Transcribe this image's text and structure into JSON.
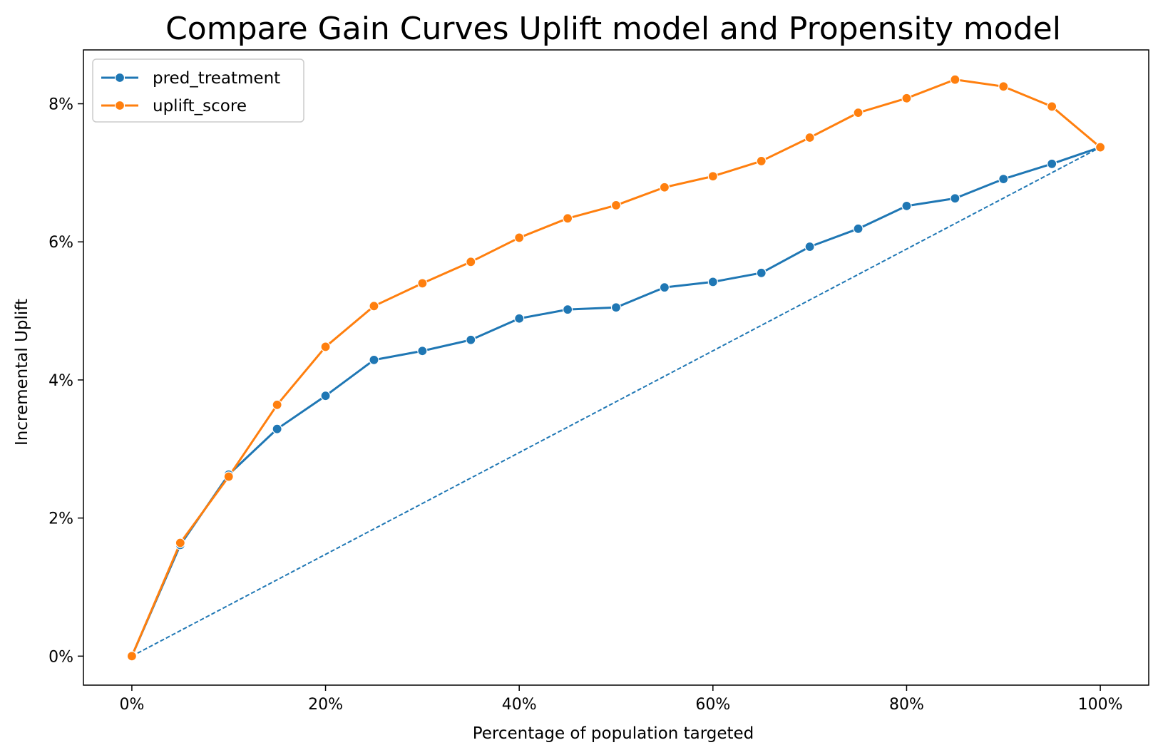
{
  "chart_data": {
    "type": "line",
    "title": "Compare Gain Curves Uplift model and Propensity model",
    "xlabel": "Percentage of population targeted",
    "ylabel": "Incremental Uplift",
    "xlim": [
      -0.05,
      1.05
    ],
    "ylim": [
      -0.0042,
      0.0878
    ],
    "xticks": [
      0,
      0.2,
      0.4,
      0.6,
      0.8,
      1.0
    ],
    "xtick_labels": [
      "0%",
      "20%",
      "40%",
      "60%",
      "80%",
      "100%"
    ],
    "yticks": [
      0,
      0.02,
      0.04,
      0.06,
      0.08
    ],
    "ytick_labels": [
      "0%",
      "2%",
      "4%",
      "6%",
      "8%"
    ],
    "grid": false,
    "legend_position": "top-left",
    "x": [
      0,
      0.05,
      0.1,
      0.15,
      0.2,
      0.25,
      0.3,
      0.35,
      0.4,
      0.45,
      0.5,
      0.55,
      0.6,
      0.65,
      0.7,
      0.75,
      0.8,
      0.85,
      0.9,
      0.95,
      1.0
    ],
    "series": [
      {
        "name": "pred_treatment",
        "color": "#1f77b4",
        "values": [
          0,
          0.0161,
          0.0263,
          0.0329,
          0.0377,
          0.0429,
          0.0442,
          0.0458,
          0.0489,
          0.0502,
          0.0505,
          0.0534,
          0.0542,
          0.0555,
          0.0593,
          0.0619,
          0.0652,
          0.0663,
          0.0691,
          0.0713,
          0.0737
        ]
      },
      {
        "name": "uplift_score",
        "color": "#ff7f0e",
        "values": [
          0,
          0.0164,
          0.026,
          0.0364,
          0.0448,
          0.0507,
          0.054,
          0.0571,
          0.0606,
          0.0634,
          0.0653,
          0.0679,
          0.0695,
          0.0717,
          0.0751,
          0.0787,
          0.0808,
          0.0835,
          0.0825,
          0.0796,
          0.0737
        ]
      }
    ],
    "random_line": {
      "color": "#1f77b4",
      "x": [
        0,
        1.0
      ],
      "values": [
        0,
        0.0737
      ]
    }
  }
}
